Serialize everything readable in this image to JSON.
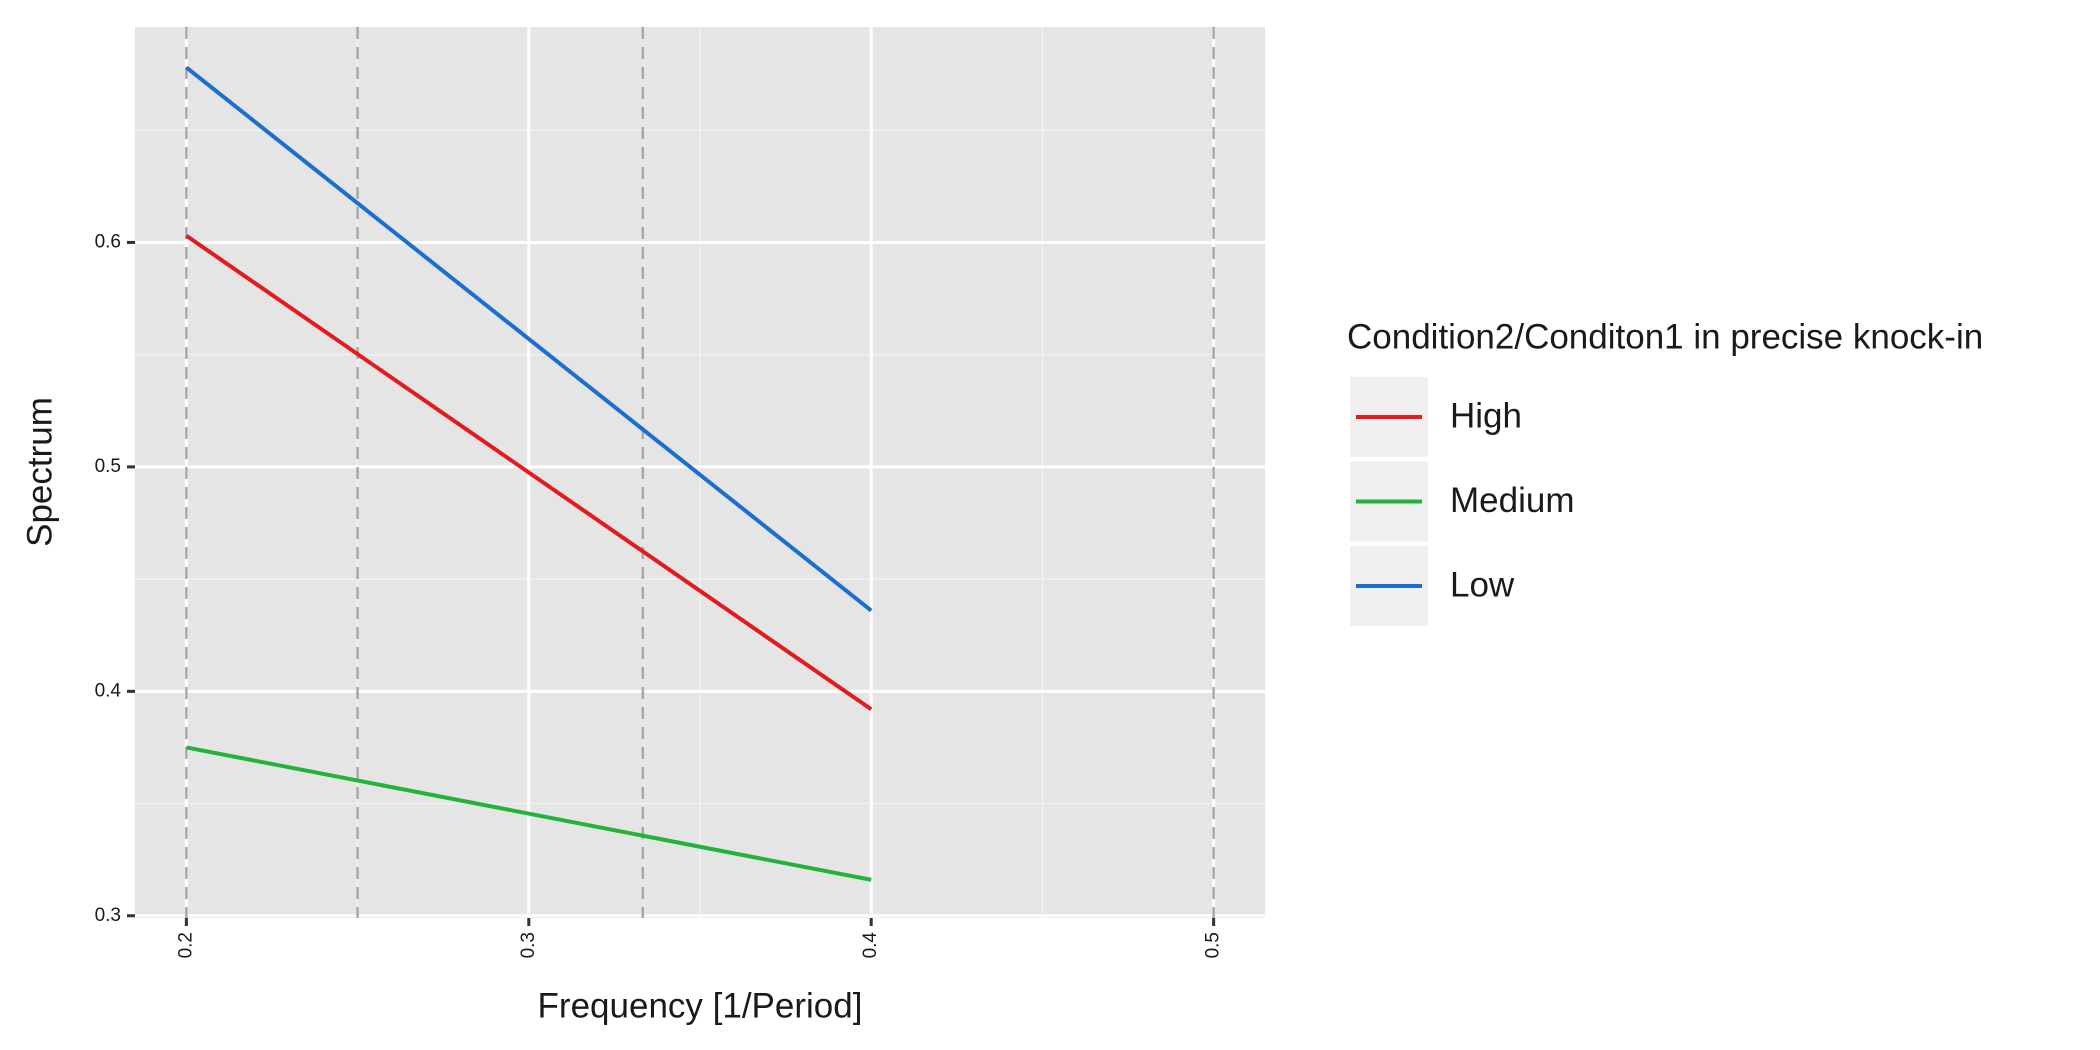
{
  "chart_data": {
    "type": "line",
    "x_label": "Frequency [1/Period]",
    "y_label": "Spectrum",
    "x": [
      0.2,
      0.4
    ],
    "series": [
      {
        "name": "High",
        "color": "#e41a1c",
        "values": [
          0.603,
          0.392
        ]
      },
      {
        "name": "Medium",
        "color": "#22b33a",
        "values": [
          0.375,
          0.316
        ]
      },
      {
        "name": "Low",
        "color": "#1a6fd1",
        "values": [
          0.678,
          0.436
        ]
      }
    ],
    "vlines": [
      0.2,
      0.25,
      0.3333,
      0.5
    ],
    "xlim": [
      0.185,
      0.515
    ],
    "ylim": [
      0.299,
      0.696
    ],
    "xticks": [
      0.2,
      0.3,
      0.4,
      0.5
    ],
    "yticks": [
      0.3,
      0.4,
      0.5,
      0.6
    ],
    "grid": true,
    "legend_title": "Condition2/Conditon1 in precise knock-in",
    "legend_position": "right"
  }
}
